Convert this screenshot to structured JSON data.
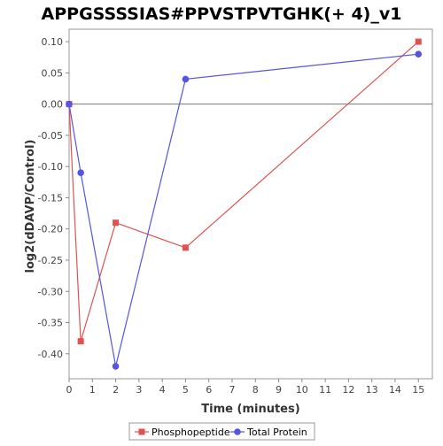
{
  "chart_data": {
    "type": "line",
    "title": "APPGSSSSIAS#PPVSTPVTGHK(+ 4)_v1",
    "xlabel": "Time (minutes)",
    "ylabel": "log2(dDAVP/Control)",
    "xlim": [
      0,
      15.6
    ],
    "ylim": [
      -0.44,
      0.12
    ],
    "xticks": [
      0,
      1,
      2,
      3,
      4,
      5,
      6,
      7,
      8,
      9,
      10,
      11,
      12,
      13,
      14,
      15
    ],
    "yticks": [
      0.1,
      0.05,
      0.0,
      -0.05,
      -0.1,
      -0.15,
      -0.2,
      -0.25,
      -0.3,
      -0.35,
      -0.4
    ],
    "ytick_labels": [
      "0.10",
      "0.05",
      "0.00",
      "-0.05",
      "-0.10",
      "-0.15",
      "-0.20",
      "-0.25",
      "-0.30",
      "-0.35",
      "-0.40"
    ],
    "zero_line": true,
    "legend_position": "bottom",
    "series": [
      {
        "name": "Phosphopeptide",
        "color": "#e05252",
        "marker": "square",
        "x": [
          0,
          0.5,
          2,
          5,
          15
        ],
        "y": [
          0.0,
          -0.38,
          -0.19,
          -0.23,
          0.1
        ]
      },
      {
        "name": "Total Protein",
        "color": "#5555e0",
        "marker": "circle",
        "x": [
          0,
          0.5,
          2,
          5,
          15
        ],
        "y": [
          0.0,
          -0.11,
          -0.42,
          0.04,
          0.08
        ]
      }
    ]
  }
}
